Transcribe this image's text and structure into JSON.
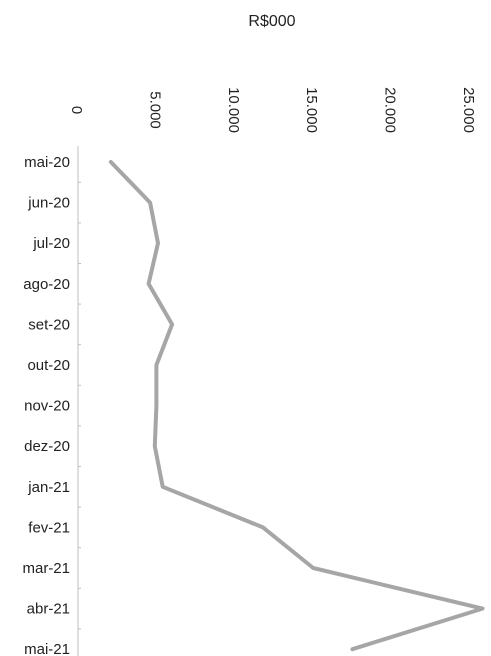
{
  "chart_data": {
    "type": "line",
    "orientation": "horizontal",
    "title": "",
    "axis_label": "R$000",
    "value_axis_position": "top",
    "value_tick_rotation": "vertical",
    "grid": false,
    "legend": "none",
    "xlim": [
      0,
      25000
    ],
    "x_ticks": [
      0,
      5000,
      10000,
      15000,
      20000,
      25000
    ],
    "x_tick_labels": [
      "0",
      "5.000",
      "10.000",
      "15.000",
      "20.000",
      "25.000"
    ],
    "categories": [
      "mai-20",
      "jun-20",
      "jul-20",
      "ago-20",
      "set-20",
      "out-20",
      "nov-20",
      "dez-20",
      "jan-21",
      "fev-21",
      "mar-21",
      "abr-21",
      "mai-21"
    ],
    "values": [
      2100,
      4600,
      5100,
      4500,
      6000,
      5000,
      5000,
      4900,
      5400,
      11800,
      15000,
      25800,
      17500
    ],
    "line_color": "#a6a6a6",
    "axis_color": "#bfbfbf"
  }
}
